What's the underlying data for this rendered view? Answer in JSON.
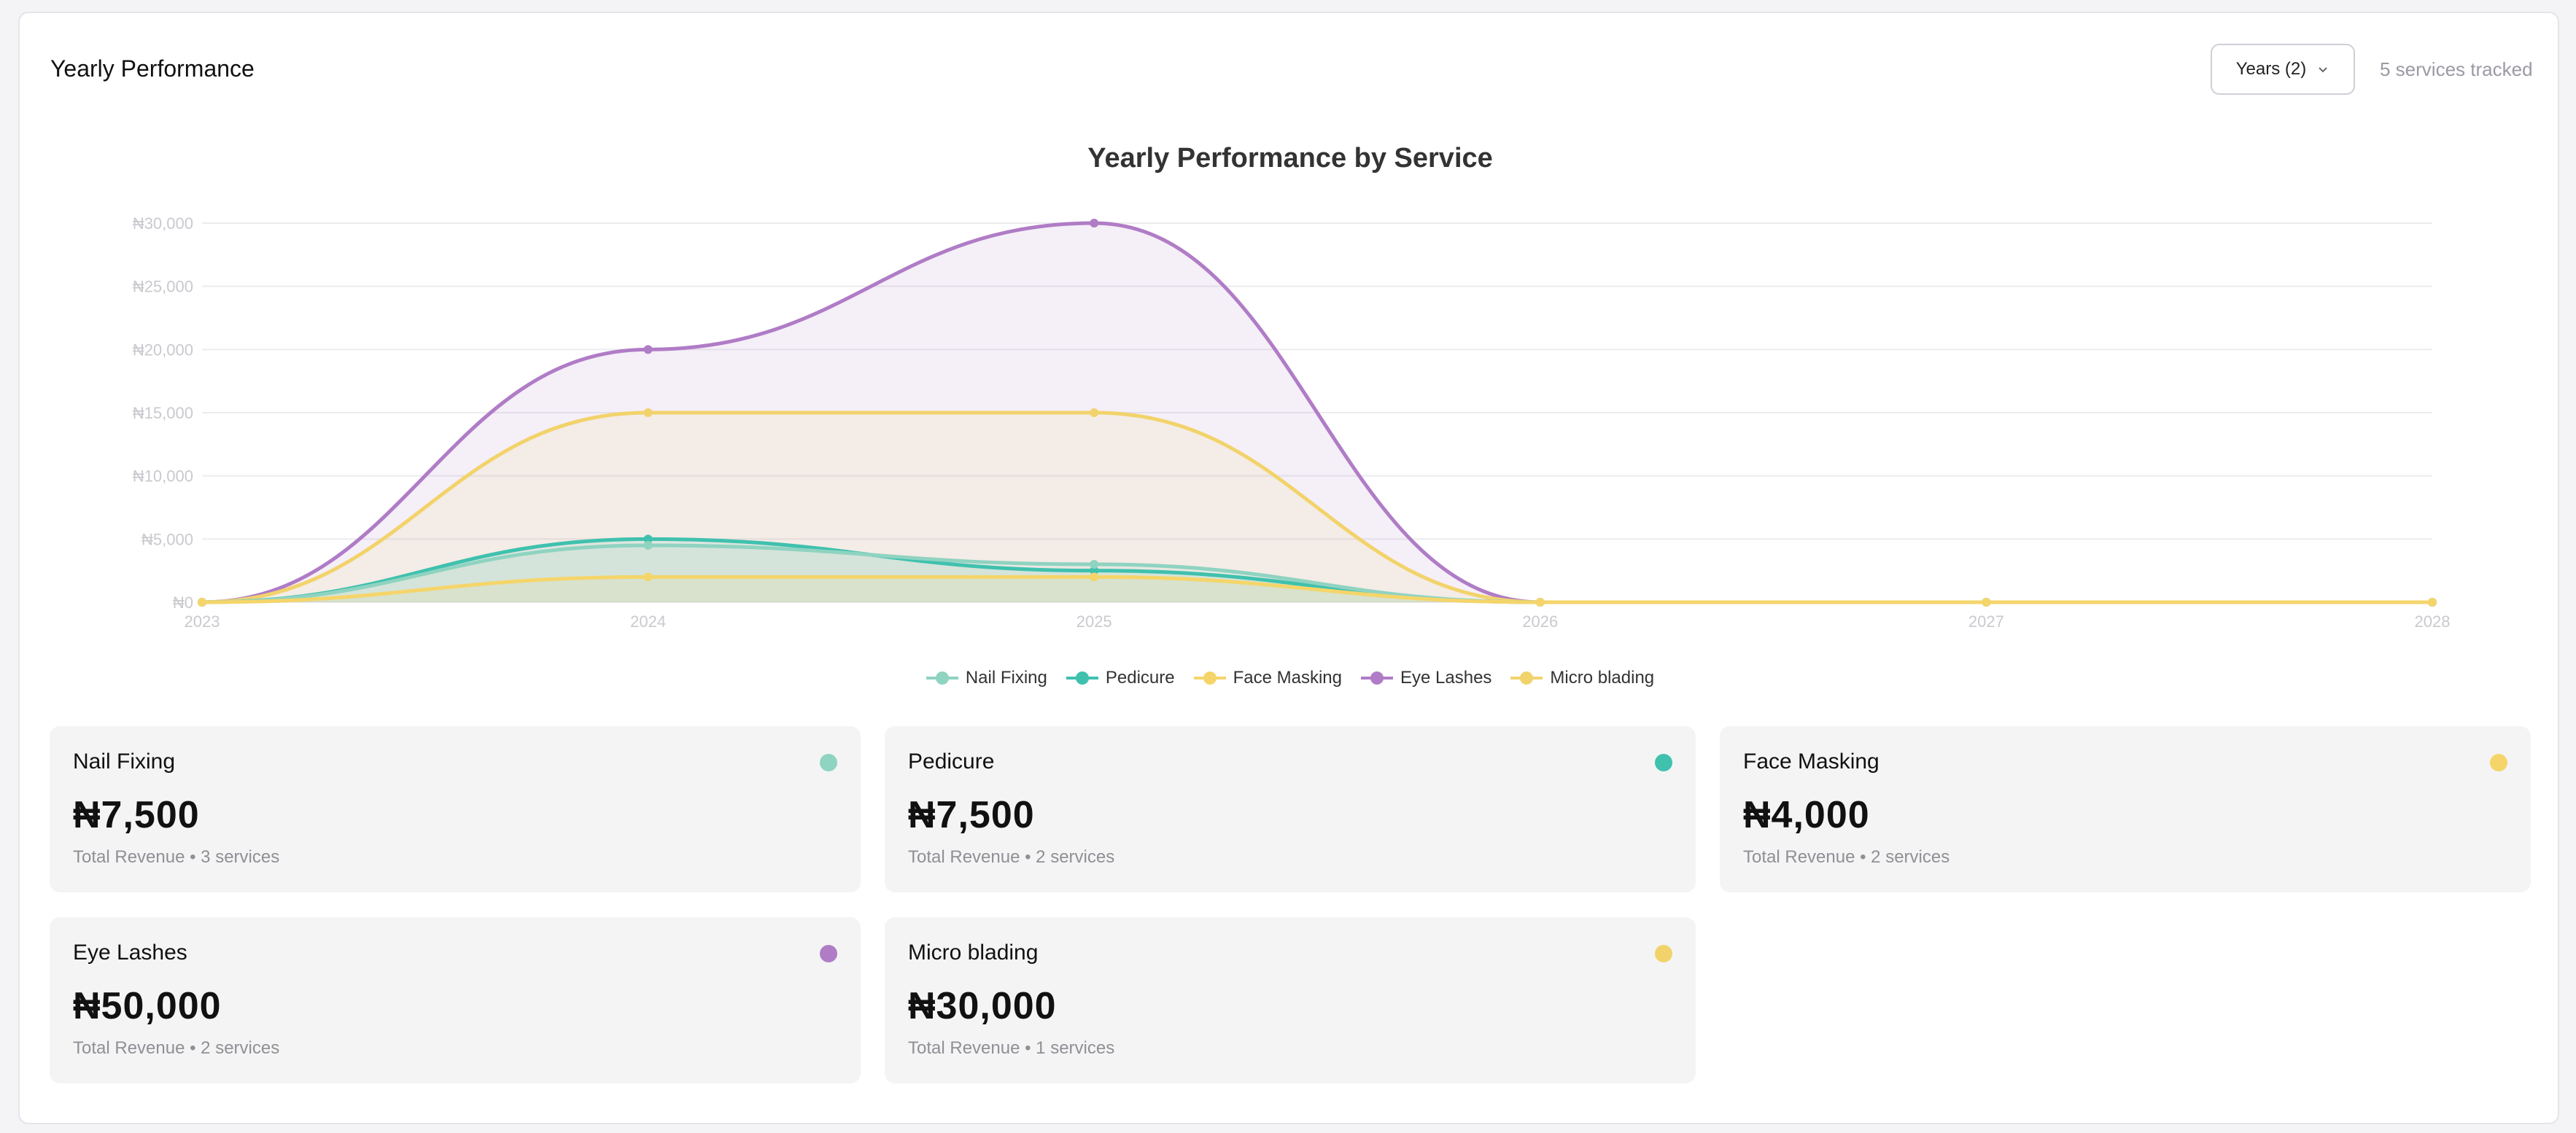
{
  "header": {
    "title": "Yearly Performance",
    "years_button_label": "Years (2)",
    "services_tracked": "5 services tracked"
  },
  "chart_data": {
    "type": "area",
    "title": "Yearly Performance by Service",
    "x": [
      "2023",
      "2024",
      "2025",
      "2026",
      "2027",
      "2028"
    ],
    "y_ticks": [
      "₦0",
      "₦5,000",
      "₦10,000",
      "₦15,000",
      "₦20,000",
      "₦25,000",
      "₦30,000"
    ],
    "ylim": [
      0,
      30000
    ],
    "grid": true,
    "legend_position": "bottom-center",
    "series": [
      {
        "name": "Nail Fixing",
        "color": "#8fd3c1",
        "values": [
          0,
          4500,
          3000,
          0,
          0,
          0
        ]
      },
      {
        "name": "Pedicure",
        "color": "#3fc1ae",
        "values": [
          0,
          5000,
          2500,
          0,
          0,
          0
        ]
      },
      {
        "name": "Face Masking",
        "color": "#f5d56a",
        "values": [
          0,
          2000,
          2000,
          0,
          0,
          0
        ]
      },
      {
        "name": "Eye Lashes",
        "color": "#b07cc6",
        "values": [
          0,
          20000,
          30000,
          0,
          0,
          0
        ]
      },
      {
        "name": "Micro blading",
        "color": "#f2d36b",
        "values": [
          0,
          15000,
          15000,
          0,
          0,
          0
        ]
      }
    ]
  },
  "cards": [
    {
      "name": "Nail Fixing",
      "value": "₦7,500",
      "sub": "Total Revenue • 3 services",
      "color": "#8fd3c1"
    },
    {
      "name": "Pedicure",
      "value": "₦7,500",
      "sub": "Total Revenue • 2 services",
      "color": "#3fc1ae"
    },
    {
      "name": "Face Masking",
      "value": "₦4,000",
      "sub": "Total Revenue • 2 services",
      "color": "#f5d56a"
    },
    {
      "name": "Eye Lashes",
      "value": "₦50,000",
      "sub": "Total Revenue • 2 services",
      "color": "#b07cc6"
    },
    {
      "name": "Micro blading",
      "value": "₦30,000",
      "sub": "Total Revenue • 1 services",
      "color": "#f2d36b"
    }
  ]
}
